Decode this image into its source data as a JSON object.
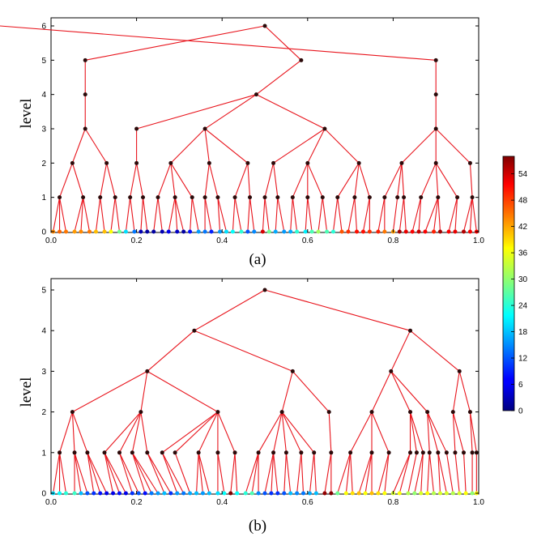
{
  "chart_data": [
    {
      "type": "tree",
      "caption": "(a)",
      "ylabel": "level",
      "xlim": [
        0.0,
        1.0
      ],
      "ylim": [
        0,
        6
      ],
      "x_ticks": [
        "0.0",
        "0.2",
        "0.4",
        "0.6",
        "0.8",
        "1.0"
      ],
      "y_ticks": [
        "0",
        "1",
        "2",
        "3",
        "4",
        "5",
        "6"
      ],
      "edge_color": "#e8141c",
      "node_color": "#2b0a0a",
      "levels": [
        {
          "level": 6,
          "x": [
            0.5
          ],
          "parent": []
        },
        {
          "level": 5,
          "x": [
            0.08,
            0.585,
            0.9
          ],
          "parent": [
            0,
            0,
            1
          ]
        },
        {
          "level": 4,
          "x": [
            0.08,
            0.48,
            0.9
          ],
          "parent": [
            0,
            1,
            2
          ]
        },
        {
          "level": 3,
          "x": [
            0.08,
            0.2,
            0.36,
            0.64,
            0.9
          ],
          "parent": [
            0,
            1,
            1,
            1,
            2
          ]
        },
        {
          "level": 2,
          "x": [
            0.05,
            0.13,
            0.2,
            0.28,
            0.37,
            0.46,
            0.52,
            0.6,
            0.72,
            0.82,
            0.9,
            0.98
          ],
          "parent": [
            0,
            0,
            1,
            2,
            2,
            2,
            3,
            3,
            3,
            4,
            4,
            4
          ]
        },
        {
          "level": 1,
          "x": [
            0.02,
            0.075,
            0.115,
            0.15,
            0.185,
            0.215,
            0.25,
            0.29,
            0.33,
            0.36,
            0.39,
            0.43,
            0.465,
            0.5,
            0.53,
            0.565,
            0.6,
            0.635,
            0.67,
            0.71,
            0.745,
            0.78,
            0.81,
            0.825,
            0.865,
            0.905,
            0.95,
            0.985
          ],
          "parent": [
            0,
            0,
            1,
            1,
            2,
            2,
            3,
            3,
            3,
            4,
            4,
            5,
            5,
            6,
            6,
            7,
            7,
            7,
            8,
            8,
            8,
            9,
            9,
            9,
            10,
            10,
            10,
            11
          ]
        },
        {
          "level": 0,
          "x": [
            0.005,
            0.02,
            0.035,
            0.055,
            0.07,
            0.09,
            0.105,
            0.125,
            0.14,
            0.16,
            0.175,
            0.195,
            0.21,
            0.225,
            0.24,
            0.26,
            0.275,
            0.295,
            0.31,
            0.325,
            0.345,
            0.36,
            0.375,
            0.395,
            0.41,
            0.425,
            0.445,
            0.46,
            0.475,
            0.495,
            0.51,
            0.525,
            0.545,
            0.56,
            0.575,
            0.595,
            0.61,
            0.625,
            0.645,
            0.66,
            0.68,
            0.695,
            0.715,
            0.73,
            0.745,
            0.765,
            0.78,
            0.8,
            0.815,
            0.83,
            0.845,
            0.86,
            0.875,
            0.895,
            0.91,
            0.93,
            0.945,
            0.965,
            0.98,
            0.995
          ],
          "parent": [
            0,
            0,
            0,
            1,
            1,
            1,
            2,
            2,
            3,
            3,
            4,
            4,
            5,
            5,
            6,
            6,
            7,
            7,
            7,
            8,
            8,
            9,
            9,
            10,
            10,
            11,
            11,
            12,
            12,
            13,
            13,
            14,
            14,
            15,
            15,
            16,
            16,
            17,
            17,
            18,
            18,
            19,
            19,
            20,
            20,
            21,
            21,
            22,
            23,
            23,
            24,
            24,
            25,
            25,
            25,
            26,
            26,
            27,
            27,
            27
          ],
          "color_value": [
            43,
            45,
            44,
            42,
            43,
            44,
            40,
            40,
            36,
            28,
            20,
            14,
            3,
            2,
            2,
            3,
            6,
            4,
            2,
            8,
            16,
            14,
            9,
            16,
            20,
            22,
            24,
            12,
            15,
            53,
            28,
            17,
            16,
            17,
            24,
            21,
            26,
            31,
            26,
            24,
            46,
            48,
            50,
            50,
            48,
            49,
            44,
            42,
            56,
            52,
            51,
            54,
            51,
            49,
            56,
            51,
            52,
            55,
            51,
            51
          ]
        }
      ]
    },
    {
      "type": "tree",
      "caption": "(b)",
      "ylabel": "level",
      "xlim": [
        0.0,
        1.0
      ],
      "ylim": [
        0,
        5
      ],
      "x_ticks": [
        "0.0",
        "0.2",
        "0.4",
        "0.6",
        "0.8",
        "1.0"
      ],
      "y_ticks": [
        "0",
        "1",
        "2",
        "3",
        "4",
        "5"
      ],
      "edge_color": "#e8141c",
      "node_color": "#2b0a0a",
      "levels": [
        {
          "level": 5,
          "x": [
            0.5
          ],
          "parent": []
        },
        {
          "level": 4,
          "x": [
            0.335,
            0.84
          ],
          "parent": [
            0,
            0
          ]
        },
        {
          "level": 3,
          "x": [
            0.225,
            0.565,
            0.795,
            0.955
          ],
          "parent": [
            0,
            0,
            1,
            1
          ]
        },
        {
          "level": 2,
          "x": [
            0.05,
            0.21,
            0.39,
            0.54,
            0.65,
            0.75,
            0.84,
            0.88,
            0.94,
            0.98
          ],
          "parent": [
            0,
            0,
            0,
            1,
            1,
            2,
            2,
            2,
            3,
            3
          ]
        },
        {
          "level": 1,
          "x": [
            0.02,
            0.055,
            0.085,
            0.125,
            0.16,
            0.19,
            0.225,
            0.26,
            0.29,
            0.345,
            0.39,
            0.43,
            0.485,
            0.52,
            0.55,
            0.585,
            0.615,
            0.655,
            0.7,
            0.75,
            0.79,
            0.84,
            0.855,
            0.87,
            0.885,
            0.905,
            0.925,
            0.945,
            0.965,
            0.985,
            0.995
          ],
          "parent": [
            0,
            0,
            0,
            1,
            1,
            1,
            1,
            2,
            2,
            2,
            2,
            2,
            3,
            3,
            3,
            3,
            3,
            4,
            5,
            5,
            5,
            6,
            6,
            6,
            7,
            7,
            7,
            8,
            8,
            9,
            9
          ]
        },
        {
          "level": 0,
          "x": [
            0.005,
            0.02,
            0.035,
            0.055,
            0.07,
            0.085,
            0.1,
            0.115,
            0.13,
            0.145,
            0.16,
            0.175,
            0.19,
            0.205,
            0.22,
            0.235,
            0.25,
            0.265,
            0.28,
            0.295,
            0.31,
            0.325,
            0.34,
            0.355,
            0.37,
            0.39,
            0.405,
            0.42,
            0.435,
            0.455,
            0.47,
            0.485,
            0.5,
            0.515,
            0.53,
            0.545,
            0.56,
            0.575,
            0.59,
            0.605,
            0.62,
            0.64,
            0.655,
            0.67,
            0.69,
            0.705,
            0.72,
            0.735,
            0.75,
            0.765,
            0.78,
            0.8,
            0.815,
            0.835,
            0.85,
            0.865,
            0.88,
            0.895,
            0.91,
            0.925,
            0.94,
            0.955,
            0.97,
            0.985,
            0.995
          ],
          "parent": [
            0,
            0,
            0,
            1,
            1,
            1,
            2,
            2,
            2,
            3,
            3,
            3,
            4,
            4,
            5,
            5,
            5,
            6,
            6,
            7,
            7,
            8,
            9,
            9,
            9,
            10,
            10,
            11,
            11,
            12,
            12,
            12,
            13,
            13,
            13,
            14,
            14,
            15,
            15,
            16,
            16,
            17,
            17,
            18,
            18,
            18,
            19,
            19,
            19,
            20,
            20,
            21,
            21,
            22,
            23,
            23,
            24,
            24,
            25,
            25,
            26,
            27,
            28,
            29,
            30
          ],
          "color_value": [
            20,
            22,
            24,
            25,
            18,
            12,
            10,
            8,
            6,
            6,
            8,
            6,
            10,
            12,
            8,
            14,
            16,
            18,
            10,
            16,
            14,
            17,
            18,
            16,
            18,
            20,
            22,
            58,
            22,
            24,
            26,
            15,
            12,
            10,
            10,
            12,
            18,
            15,
            14,
            17,
            18,
            57,
            58,
            28,
            36,
            38,
            40,
            36,
            40,
            38,
            36,
            34,
            36,
            32,
            30,
            34,
            36,
            32,
            34,
            34,
            32,
            34,
            36,
            30,
            36
          ]
        }
      ]
    }
  ],
  "colorbar": {
    "ticks": [
      "54",
      "48",
      "42",
      "36",
      "30",
      "24",
      "18",
      "12",
      "6",
      "0"
    ],
    "range": [
      0,
      58
    ]
  }
}
